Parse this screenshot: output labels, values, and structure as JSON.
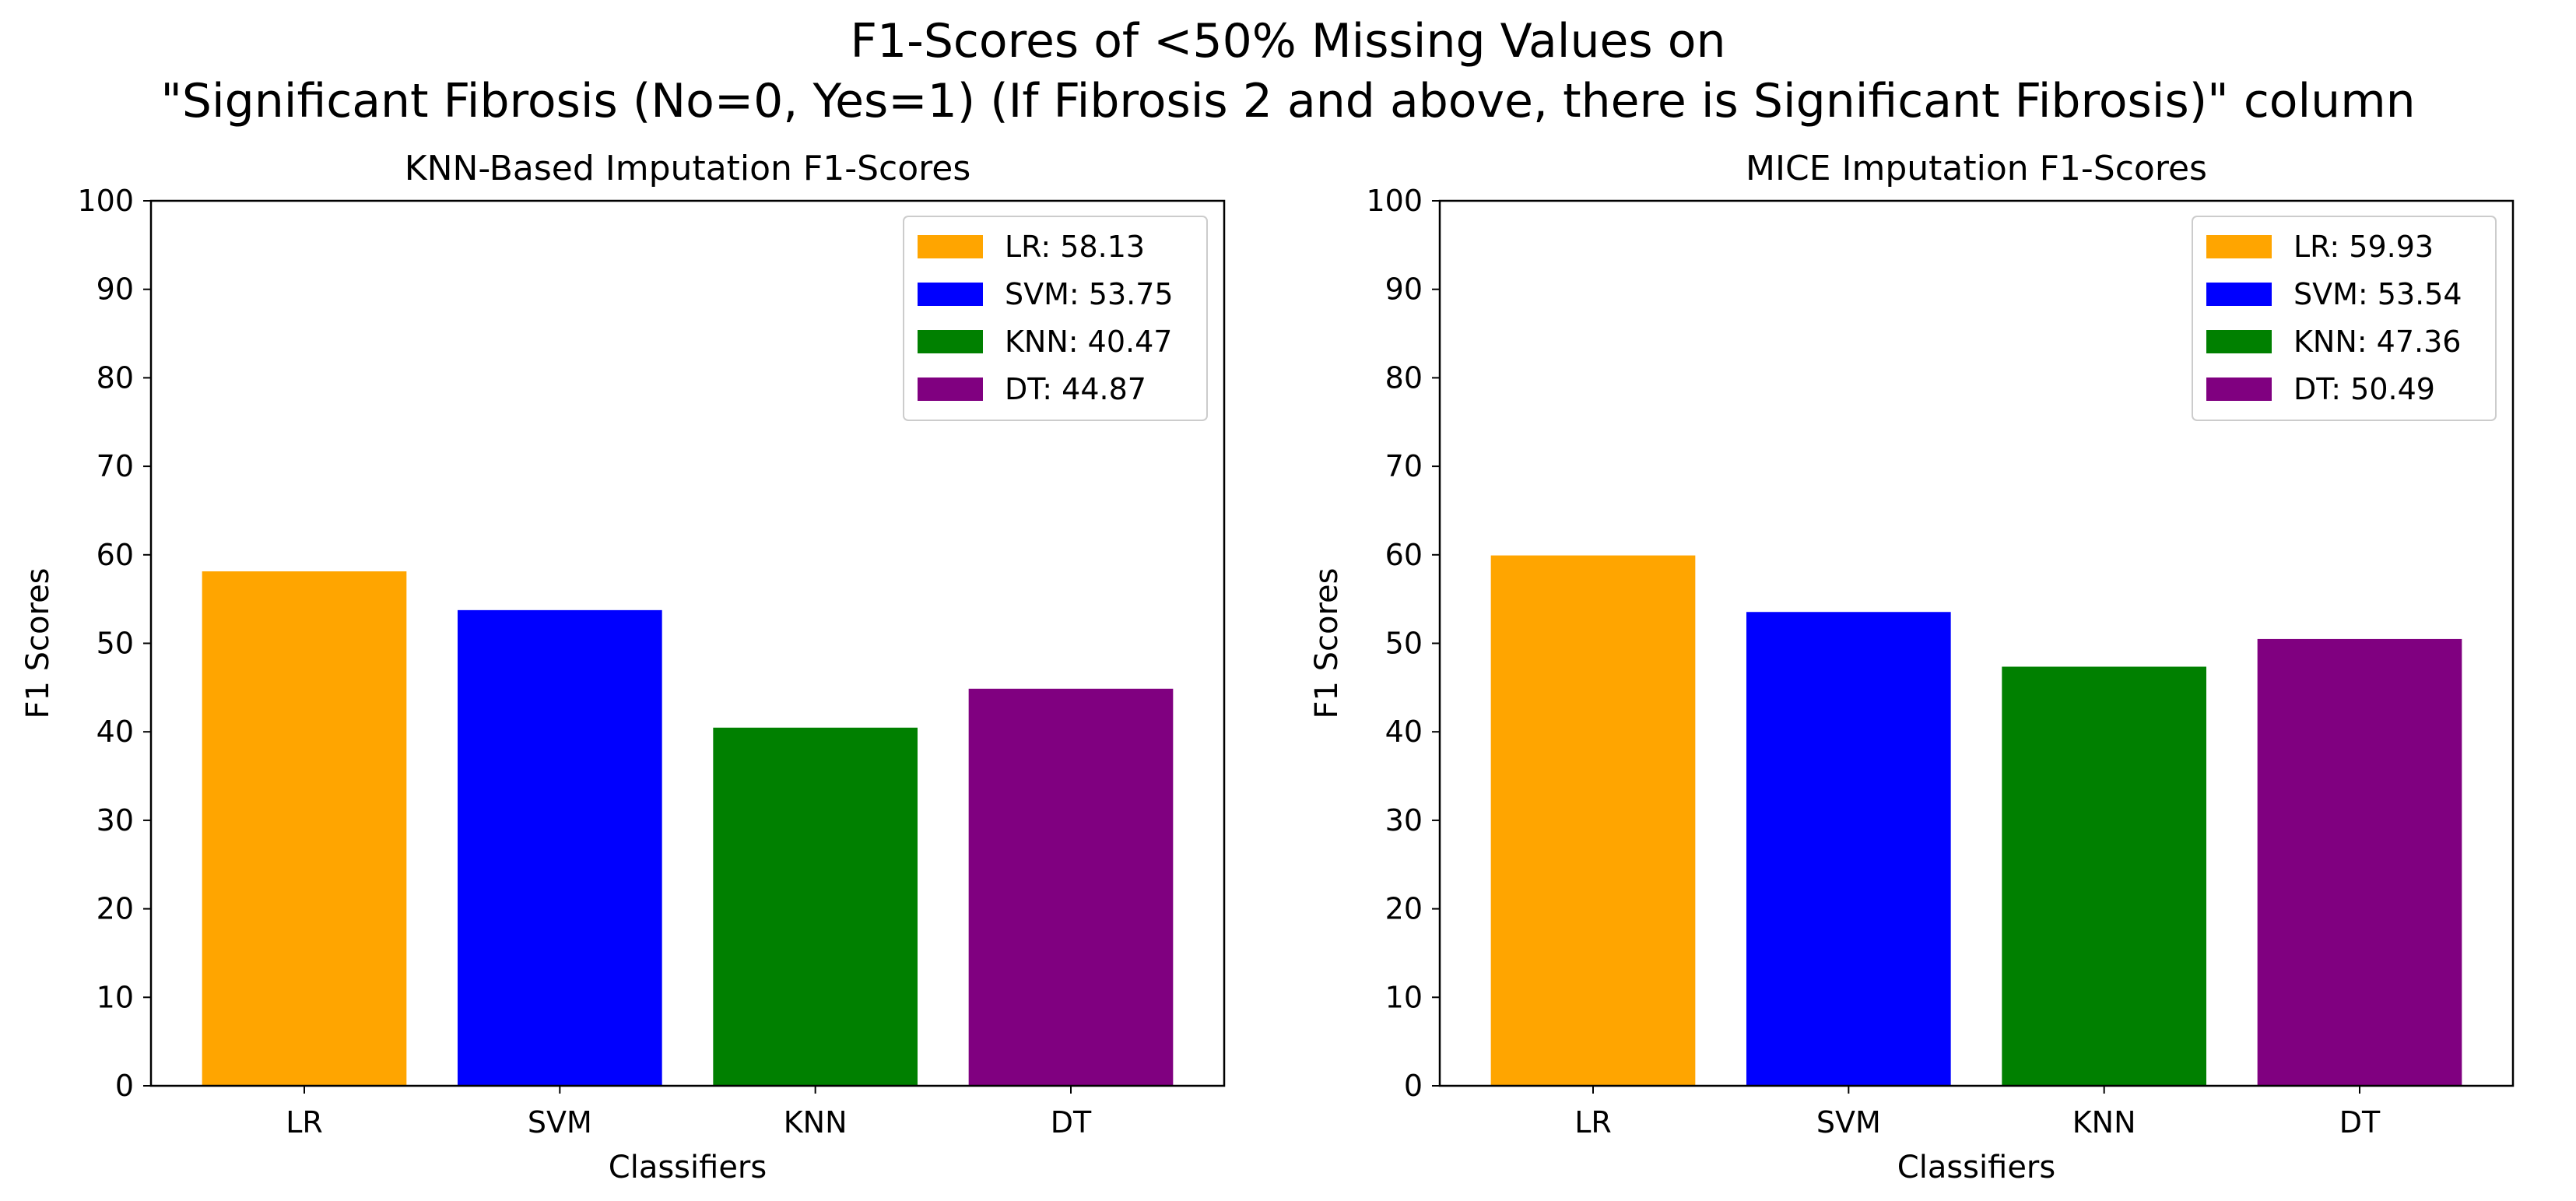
{
  "figure": {
    "title_line1": "F1-Scores of <50% Missing Values on",
    "title_line2": "\"Significant Fibrosis (No=0, Yes=1) (If Fibrosis 2 and above, there is Significant Fibrosis)\" column"
  },
  "chart_data": [
    {
      "type": "bar",
      "title": "KNN-Based Imputation F1-Scores",
      "xlabel": "Classifiers",
      "ylabel": "F1 Scores",
      "categories": [
        "LR",
        "SVM",
        "KNN",
        "DT"
      ],
      "values": [
        58.13,
        53.75,
        40.47,
        44.87
      ],
      "colors": [
        "#FFA500",
        "#0000FF",
        "#008000",
        "#800080"
      ],
      "legend": [
        "LR: 58.13",
        "SVM: 53.75",
        "KNN: 40.47",
        "DT: 44.87"
      ],
      "legend_position": "top-right",
      "ylim": [
        0,
        100
      ],
      "yticks": [
        0,
        10,
        20,
        30,
        40,
        50,
        60,
        70,
        80,
        90,
        100
      ],
      "grid": false
    },
    {
      "type": "bar",
      "title": "MICE Imputation F1-Scores",
      "xlabel": "Classifiers",
      "ylabel": "F1 Scores",
      "categories": [
        "LR",
        "SVM",
        "KNN",
        "DT"
      ],
      "values": [
        59.93,
        53.54,
        47.36,
        50.49
      ],
      "colors": [
        "#FFA500",
        "#0000FF",
        "#008000",
        "#800080"
      ],
      "legend": [
        "LR: 59.93",
        "SVM: 53.54",
        "KNN: 47.36",
        "DT: 50.49"
      ],
      "legend_position": "top-right",
      "ylim": [
        0,
        100
      ],
      "yticks": [
        0,
        10,
        20,
        30,
        40,
        50,
        60,
        70,
        80,
        90,
        100
      ],
      "grid": false
    }
  ]
}
